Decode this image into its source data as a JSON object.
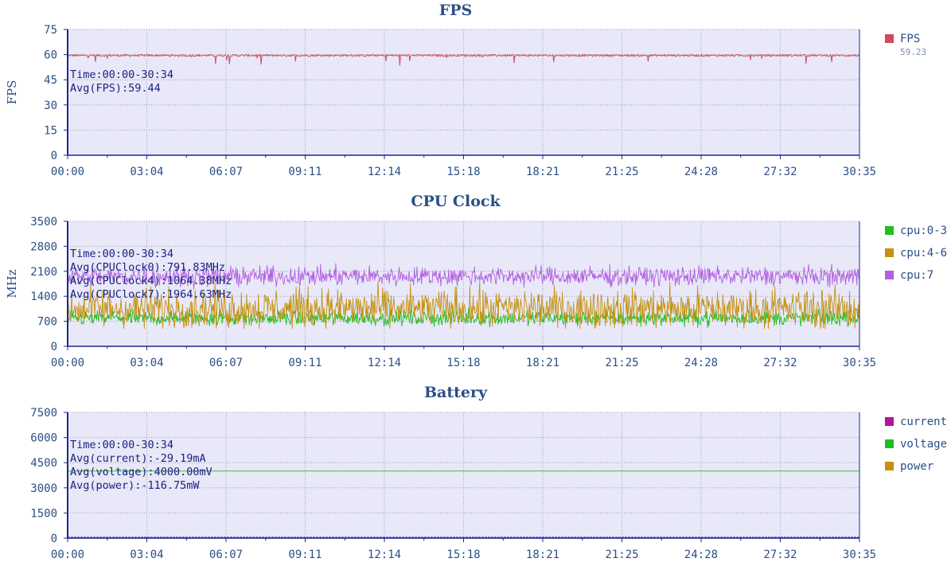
{
  "chart_data": [
    {
      "type": "line",
      "title": "FPS",
      "ylabel": "FPS",
      "ylim": [
        0,
        75
      ],
      "yticks": [
        0,
        15,
        30,
        45,
        60,
        75
      ],
      "xticks": [
        "00:00",
        "03:04",
        "06:07",
        "09:11",
        "12:14",
        "15:18",
        "18:21",
        "21:25",
        "24:28",
        "27:32",
        "30:35"
      ],
      "grid": true,
      "annotations": [
        "Time:00:00-30:34",
        "Avg(FPS):59.44"
      ],
      "series": [
        {
          "name": "FPS",
          "color": "#d1495b",
          "legend_value": "59.23",
          "base": 59.5,
          "noise": 0.6,
          "dips": 0.015,
          "dip_depth": 6,
          "min": 0,
          "max": 75
        }
      ]
    },
    {
      "type": "line",
      "title": "CPU Clock",
      "ylabel": "MHz",
      "ylim": [
        0,
        3500
      ],
      "yticks": [
        0,
        700,
        1400,
        2100,
        2800,
        3500
      ],
      "xticks": [
        "00:00",
        "03:04",
        "06:07",
        "09:11",
        "12:14",
        "15:18",
        "18:21",
        "21:25",
        "24:28",
        "27:32",
        "30:35"
      ],
      "grid": true,
      "annotations": [
        "Time:00:00-30:34",
        "Avg(CPUClock0):791.83MHz",
        "Avg(CPUClock4):1064.38MHz",
        "Avg(CPUClock7):1964.63MHz"
      ],
      "series": [
        {
          "name": "cpu:0-3",
          "color": "#1fbf1f",
          "base": 790,
          "noise": 180,
          "min": 450,
          "max": 1100
        },
        {
          "name": "cpu:4-6",
          "color": "#c4920f",
          "base": 1060,
          "noise": 480,
          "min": 500,
          "max": 1950
        },
        {
          "name": "cpu:7",
          "color": "#b35ee0",
          "base": 1960,
          "noise": 230,
          "min": 1600,
          "max": 2650
        }
      ]
    },
    {
      "type": "line",
      "title": "Battery",
      "ylabel": "",
      "ylim": [
        0,
        7500
      ],
      "yticks": [
        0,
        1500,
        3000,
        4500,
        6000,
        7500
      ],
      "xticks": [
        "00:00",
        "03:04",
        "06:07",
        "09:11",
        "12:14",
        "15:18",
        "18:21",
        "21:25",
        "24:28",
        "27:32",
        "30:35"
      ],
      "grid": true,
      "annotations": [
        "Time:00:00-30:34",
        "Avg(current):-29.19mA",
        "Avg(voltage):4000.00mV",
        "Avg(power):-116.75mW"
      ],
      "series": [
        {
          "name": "current",
          "color": "#b0149a",
          "base": 0,
          "noise": 0,
          "min": 0,
          "max": 7500
        },
        {
          "name": "voltage",
          "color": "#1fbf1f",
          "base": 4000,
          "noise": 0,
          "min": 0,
          "max": 7500
        },
        {
          "name": "power",
          "color": "#c4920f",
          "base": 0,
          "noise": 0,
          "min": 0,
          "max": 7500
        }
      ]
    }
  ]
}
